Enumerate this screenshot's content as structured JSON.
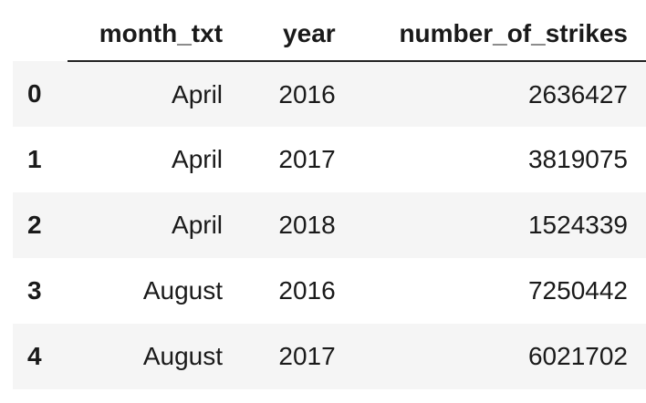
{
  "table": {
    "columns": [
      "month_txt",
      "year",
      "number_of_strikes"
    ],
    "rows": [
      {
        "index": "0",
        "month_txt": "April",
        "year": "2016",
        "number_of_strikes": "2636427"
      },
      {
        "index": "1",
        "month_txt": "April",
        "year": "2017",
        "number_of_strikes": "3819075"
      },
      {
        "index": "2",
        "month_txt": "April",
        "year": "2018",
        "number_of_strikes": "1524339"
      },
      {
        "index": "3",
        "month_txt": "August",
        "year": "2016",
        "number_of_strikes": "7250442"
      },
      {
        "index": "4",
        "month_txt": "August",
        "year": "2017",
        "number_of_strikes": "6021702"
      }
    ]
  }
}
